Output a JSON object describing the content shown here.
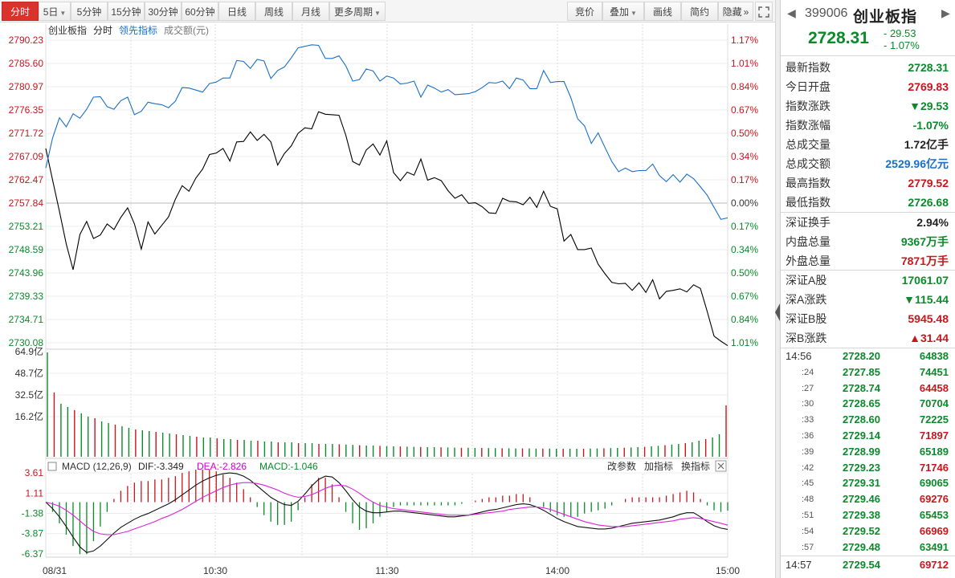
{
  "toolbar": {
    "left": [
      {
        "label": "分时",
        "active": true,
        "caret": false
      },
      {
        "label": "5日",
        "active": false,
        "caret": true
      },
      {
        "label": "5分钟",
        "active": false,
        "caret": false
      },
      {
        "label": "15分钟",
        "active": false,
        "caret": false
      },
      {
        "label": "30分钟",
        "active": false,
        "caret": false
      },
      {
        "label": "60分钟",
        "active": false,
        "caret": false
      },
      {
        "label": "日线",
        "active": false,
        "caret": false
      },
      {
        "label": "周线",
        "active": false,
        "caret": false
      },
      {
        "label": "月线",
        "active": false,
        "caret": false
      },
      {
        "label": "更多周期",
        "active": false,
        "caret": true
      }
    ],
    "right": [
      {
        "label": "竞价",
        "caret": false
      },
      {
        "label": "叠加",
        "caret": true
      },
      {
        "label": "画线",
        "caret": false
      },
      {
        "label": "简约",
        "caret": false
      },
      {
        "label": "隐藏",
        "caret": false
      }
    ],
    "expand_arrow": "»",
    "fullscreen_icon": "fullscreen-icon"
  },
  "chart_header": {
    "name": "创业板指",
    "mode": "分时",
    "lead_indicator": "领先指标",
    "volume_unit": "成交额(元)"
  },
  "chart_data": {
    "type": "line",
    "price_axis": [
      "2790.23",
      "2785.60",
      "2780.97",
      "2776.35",
      "2771.72",
      "2767.09",
      "2762.47",
      "2757.84",
      "2753.21",
      "2748.59",
      "2743.96",
      "2739.33",
      "2734.71",
      "2730.08"
    ],
    "pct_axis": [
      "1.17%",
      "1.01%",
      "0.84%",
      "0.67%",
      "0.50%",
      "0.34%",
      "0.17%",
      "0.00%",
      "0.17%",
      "0.34%",
      "0.50%",
      "0.67%",
      "0.84%",
      "1.01%"
    ],
    "time_labels": [
      "08/31",
      "10:30",
      "11:30",
      "14:00",
      "15:00"
    ],
    "prev_close": 2757.84,
    "ylim": [
      2727.0,
      2790.23
    ],
    "series": [
      {
        "color": "#000000",
        "values": [
          2768.7,
          2762.4,
          2756.2,
          2749.7,
          2744.6,
          2751.6,
          2754.2,
          2750.8,
          2751.5,
          2753.7,
          2752.6,
          2755.0,
          2756.9,
          2753.7,
          2748.7,
          2754.1,
          2751.7,
          2753.4,
          2755.1,
          2758.6,
          2761.3,
          2760.2,
          2762.8,
          2764.6,
          2767.5,
          2767.8,
          2768.7,
          2766.2,
          2770.0,
          2770.1,
          2772.0,
          2770.3,
          2771.5,
          2770.0,
          2765.4,
          2767.7,
          2769.2,
          2771.7,
          2772.8,
          2772.6,
          2776.0,
          2775.5,
          2775.4,
          2775.3,
          2771.3,
          2766.1,
          2765.4,
          2768.4,
          2769.6,
          2767.4,
          2770.2,
          2763.9,
          2762.3,
          2764.0,
          2763.4,
          2766.6,
          2762.4,
          2762.9,
          2762.3,
          2760.3,
          2758.8,
          2759.5,
          2757.8,
          2757.9,
          2757.1,
          2755.9,
          2755.8,
          2758.8,
          2758.2,
          2758.1,
          2757.5,
          2759.0,
          2757.0,
          2760.2,
          2757.2,
          2756.7,
          2750.3,
          2751.6,
          2748.6,
          2748.6,
          2748.9,
          2745.7,
          2743.8,
          2742.1,
          2741.8,
          2741.9,
          2740.5,
          2742.0,
          2740.1,
          2742.6,
          2738.8,
          2740.3,
          2740.5,
          2740.8,
          2740.2,
          2741.6,
          2740.9,
          2736.3,
          2731.4,
          2730.4,
          2729.5
        ]
      },
      {
        "color": "#1a6fc6",
        "values": [
          2764.8,
          2770.8,
          2774.8,
          2773.0,
          2775.6,
          2774.7,
          2776.5,
          2778.9,
          2779.0,
          2777.0,
          2776.5,
          2778.2,
          2778.9,
          2775.4,
          2776.1,
          2777.9,
          2777.6,
          2777.4,
          2776.8,
          2778.1,
          2780.8,
          2780.7,
          2780.3,
          2779.9,
          2781.6,
          2781.9,
          2782.7,
          2782.7,
          2786.2,
          2786.0,
          2784.6,
          2786.4,
          2786.1,
          2782.6,
          2784.2,
          2784.9,
          2786.7,
          2788.7,
          2789.0,
          2789.3,
          2789.2,
          2786.6,
          2786.6,
          2787.1,
          2785.1,
          2782.1,
          2782.4,
          2784.5,
          2784.1,
          2782.1,
          2783.1,
          2782.7,
          2781.5,
          2781.7,
          2782.1,
          2778.9,
          2781.3,
          2780.7,
          2779.9,
          2780.4,
          2779.4,
          2779.5,
          2779.6,
          2780.0,
          2780.8,
          2781.8,
          2781.7,
          2782.1,
          2780.6,
          2782.7,
          2782.3,
          2780.6,
          2780.6,
          2784.2,
          2781.8,
          2782.0,
          2782.0,
          2778.8,
          2774.6,
          2773.2,
          2769.7,
          2771.8,
          2768.9,
          2766.1,
          2764.1,
          2764.8,
          2764.1,
          2764.3,
          2764.3,
          2765.6,
          2763.3,
          2762.1,
          2763.5,
          2762.0,
          2763.6,
          2762.7,
          2761.1,
          2759.4,
          2757.0,
          2754.6,
          2754.9
        ]
      }
    ],
    "volume_axis": [
      "64.9亿",
      "48.7亿",
      "32.5亿",
      "16.2亿"
    ],
    "volume_max": 64.9,
    "volume": [
      64.9,
      40,
      33,
      31,
      29,
      27,
      25,
      24,
      22,
      21,
      20,
      19,
      18,
      17,
      16.5,
      16,
      15.5,
      15,
      14.5,
      14,
      13.5,
      13,
      12.5,
      12,
      12,
      11.5,
      11,
      11,
      10.5,
      10.5,
      10,
      10,
      9.5,
      9.5,
      9,
      9,
      9,
      8.5,
      8.5,
      8.5,
      8,
      8,
      8,
      7.8,
      7.6,
      7.4,
      7.2,
      7,
      7,
      6.8,
      6.6,
      6.5,
      6.4,
      6.3,
      6.2,
      6.1,
      6,
      6,
      5.9,
      5.8,
      5.7,
      5.6,
      5.6,
      5.5,
      5.5,
      5.4,
      5.4,
      5.3,
      5.3,
      5.2,
      5.2,
      5.2,
      5.1,
      5.1,
      5.1,
      5,
      5,
      5,
      5,
      5,
      5.1,
      5.2,
      5.3,
      5.4,
      5.5,
      5.6,
      5.8,
      6,
      6.2,
      6.5,
      6.8,
      7.2,
      7.6,
      8,
      8.5,
      9,
      10,
      11,
      12,
      14,
      32
    ],
    "macd_header": {
      "name": "MACD (12,26,9)",
      "dif": "DIF:-3.349",
      "dea": "DEA:-2.826",
      "macd": "MACD:-1.046"
    },
    "macd_axis": [
      "3.61",
      "1.11",
      "-1.38",
      "-3.87",
      "-6.37"
    ],
    "macd_ylim": [
      -6.37,
      3.61
    ],
    "dif": [
      0,
      -0.8,
      -1.8,
      -3.0,
      -4.3,
      -5.5,
      -6.2,
      -6.0,
      -5.4,
      -4.6,
      -3.8,
      -3.1,
      -2.6,
      -2.1,
      -1.7,
      -1.4,
      -1.0,
      -0.6,
      -0.2,
      0.3,
      0.9,
      1.5,
      2.1,
      2.6,
      3.0,
      3.3,
      3.5,
      3.6,
      3.5,
      3.2,
      2.7,
      2.0,
      1.3,
      0.6,
      0.1,
      -0.3,
      -0.4,
      0.1,
      1.0,
      2.0,
      2.8,
      3.2,
      3.1,
      2.4,
      1.4,
      0.3,
      -0.6,
      -1.1,
      -1.3,
      -1.3,
      -1.2,
      -1.1,
      -1.1,
      -1.2,
      -1.3,
      -1.4,
      -1.5,
      -1.6,
      -1.7,
      -1.8,
      -1.8,
      -1.7,
      -1.6,
      -1.4,
      -1.2,
      -1.0,
      -0.9,
      -0.7,
      -0.5,
      -0.3,
      -0.2,
      -0.3,
      -0.6,
      -1.0,
      -1.5,
      -2.0,
      -2.4,
      -2.7,
      -3.0,
      -3.1,
      -3.2,
      -3.3,
      -3.3,
      -3.2,
      -3.0,
      -2.8,
      -2.6,
      -2.5,
      -2.4,
      -2.3,
      -2.2,
      -2.0,
      -1.8,
      -1.5,
      -1.3,
      -1.3,
      -1.8,
      -2.4,
      -2.9,
      -3.2,
      -3.35
    ],
    "dea": [
      0,
      -0.2,
      -0.5,
      -1.0,
      -1.6,
      -2.3,
      -3.0,
      -3.6,
      -3.9,
      -4.0,
      -4.0,
      -3.8,
      -3.6,
      -3.3,
      -3.0,
      -2.7,
      -2.4,
      -2.0,
      -1.7,
      -1.3,
      -0.9,
      -0.4,
      0.1,
      0.6,
      1.0,
      1.4,
      1.8,
      2.1,
      2.3,
      2.4,
      2.4,
      2.3,
      2.1,
      1.8,
      1.5,
      1.1,
      0.8,
      0.6,
      0.7,
      0.9,
      1.3,
      1.7,
      2.0,
      2.1,
      2.0,
      1.6,
      1.1,
      0.5,
      0,
      -0.4,
      -0.6,
      -0.8,
      -0.9,
      -1.0,
      -1.1,
      -1.2,
      -1.3,
      -1.4,
      -1.5,
      -1.6,
      -1.6,
      -1.6,
      -1.6,
      -1.5,
      -1.4,
      -1.3,
      -1.2,
      -1.1,
      -0.9,
      -0.8,
      -0.7,
      -0.6,
      -0.6,
      -0.7,
      -0.9,
      -1.2,
      -1.5,
      -1.8,
      -2.1,
      -2.4,
      -2.6,
      -2.8,
      -2.9,
      -3.0,
      -3.0,
      -3.0,
      -2.9,
      -2.8,
      -2.7,
      -2.6,
      -2.5,
      -2.4,
      -2.3,
      -2.1,
      -2.0,
      -1.9,
      -2.0,
      -2.2,
      -2.4,
      -2.6,
      -2.83
    ],
    "macd_tools": [
      "改参数",
      "加指标",
      "换指标"
    ]
  },
  "quote": {
    "code": "399006",
    "name": "创业板指",
    "price": "2728.31",
    "change": "- 29.53",
    "change_pct": "- 1.07%",
    "rows": [
      {
        "label": "最新指数",
        "value": "2728.31",
        "color": "green"
      },
      {
        "label": "今日开盘",
        "value": "2769.83",
        "color": "red"
      },
      {
        "label": "指数涨跌",
        "value": "▼29.53",
        "color": "green"
      },
      {
        "label": "指数涨幅",
        "value": "-1.07%",
        "color": "green"
      },
      {
        "label": "总成交量",
        "value": "1.72亿手",
        "color": "dark"
      },
      {
        "label": "总成交额",
        "value": "2529.96亿元",
        "color": "blue"
      },
      {
        "label": "最高指数",
        "value": "2779.52",
        "color": "red"
      },
      {
        "label": "最低指数",
        "value": "2726.68",
        "color": "green"
      },
      {
        "label": "深证换手",
        "value": "2.94%",
        "color": "dark"
      },
      {
        "label": "内盘总量",
        "value": "9367万手",
        "color": "green"
      },
      {
        "label": "外盘总量",
        "value": "7871万手",
        "color": "red"
      },
      {
        "label": "深证A股",
        "value": "17061.07",
        "color": "green"
      },
      {
        "label": "深A涨跌",
        "value": "▼115.44",
        "color": "green"
      },
      {
        "label": "深证B股",
        "value": "5945.48",
        "color": "red"
      },
      {
        "label": "深B涨跌",
        "value": "▲31.44",
        "color": "red"
      }
    ],
    "ticks": [
      {
        "time": "14:56",
        "sub": false,
        "price": "2728.20",
        "vol": "64838",
        "color": "green"
      },
      {
        "time": ":24",
        "sub": true,
        "price": "2727.85",
        "vol": "74451",
        "color": "green"
      },
      {
        "time": ":27",
        "sub": true,
        "price": "2728.74",
        "vol": "64458",
        "color": "red"
      },
      {
        "time": ":30",
        "sub": true,
        "price": "2728.65",
        "vol": "70704",
        "color": "green"
      },
      {
        "time": ":33",
        "sub": true,
        "price": "2728.60",
        "vol": "72225",
        "color": "green"
      },
      {
        "time": ":36",
        "sub": true,
        "price": "2729.14",
        "vol": "71897",
        "color": "red"
      },
      {
        "time": ":39",
        "sub": true,
        "price": "2728.99",
        "vol": "65189",
        "color": "green"
      },
      {
        "time": ":42",
        "sub": true,
        "price": "2729.23",
        "vol": "71746",
        "color": "red"
      },
      {
        "time": ":45",
        "sub": true,
        "price": "2729.31",
        "vol": "69065",
        "color": "green"
      },
      {
        "time": ":48",
        "sub": true,
        "price": "2729.46",
        "vol": "69276",
        "color": "red"
      },
      {
        "time": ":51",
        "sub": true,
        "price": "2729.38",
        "vol": "65453",
        "color": "green"
      },
      {
        "time": ":54",
        "sub": true,
        "price": "2729.52",
        "vol": "66969",
        "color": "red"
      },
      {
        "time": ":57",
        "sub": true,
        "price": "2729.48",
        "vol": "63491",
        "color": "green"
      },
      {
        "time": "14:57",
        "sub": false,
        "price": "2729.54",
        "vol": "69712",
        "color": "red"
      }
    ]
  }
}
